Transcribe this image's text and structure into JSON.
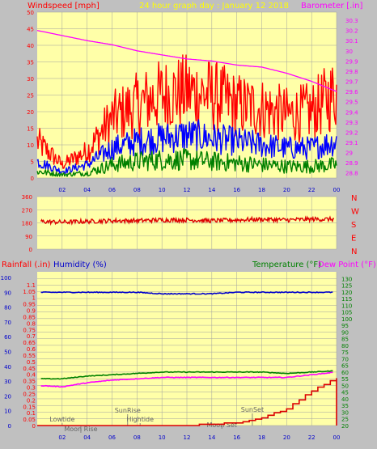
{
  "header": {
    "windspeed_label": "Windspeed [mph]",
    "title": "24 hour graph day : January 12 2018",
    "barometer_label": "Barometer [.in]"
  },
  "bottom_header": {
    "rainfall_label": "Rainfall (.in)",
    "humidity_label": "Humidity (%)",
    "temperature_label": "Temperature (°F)",
    "dewpoint_label": "Dew Point (°F)"
  },
  "colors": {
    "background": "#c0c0c0",
    "plot_bg": "#ffffa8",
    "grid": "#a0a0a0",
    "wind_gust": "#ff0000",
    "wind_max": "#0000ff",
    "wind_avg": "#008000",
    "barometer": "#ff00ff",
    "wind_dir": "#dd0000",
    "rain": "#dd0000",
    "humidity": "#0000cc",
    "temperature": "#008000",
    "dewpoint": "#ff00ff",
    "event_line": "#707070",
    "right_axis_text": "#ff00ff"
  },
  "x_ticks": [
    "02",
    "04",
    "06",
    "08",
    "10",
    "12",
    "14",
    "16",
    "18",
    "20",
    "22",
    "00"
  ],
  "chart_data": [
    {
      "type": "line",
      "title": "24 hour graph day : January 12 2018",
      "ylabel": "Windspeed [mph]",
      "ylabel_right": "Barometer [.in]",
      "ylim": [
        0,
        50
      ],
      "ylim_right": [
        28.75,
        30.38
      ],
      "yticks": [
        0,
        5,
        10,
        15,
        20,
        25,
        30,
        35,
        40,
        45,
        50
      ],
      "yticks_right": [
        "28.8",
        "28.9",
        "29",
        "29.1",
        "29.2",
        "29.3",
        "29.4",
        "29.5",
        "29.6",
        "29.7",
        "29.8",
        "29.9",
        "30",
        "30.1",
        "30.2",
        "30.3"
      ],
      "x": [
        "00",
        "02",
        "04",
        "06",
        "08",
        "10",
        "12",
        "14",
        "16",
        "18",
        "20",
        "22",
        "00"
      ],
      "series": [
        {
          "key": "gust",
          "values": [
            11,
            4,
            8,
            18,
            22,
            25,
            26,
            25,
            22,
            21,
            19,
            20,
            26
          ]
        },
        {
          "key": "max",
          "values": [
            5,
            2,
            4,
            9,
            11,
            12,
            13,
            12,
            11,
            10,
            9,
            9,
            11
          ]
        },
        {
          "key": "avg",
          "values": [
            2,
            1,
            1.5,
            4,
            5,
            5.5,
            5.5,
            5,
            4.5,
            4,
            3.5,
            3.5,
            4
          ]
        },
        {
          "key": "barometer",
          "values": [
            30.2,
            30.15,
            30.1,
            30.06,
            30.0,
            29.96,
            29.92,
            29.9,
            29.86,
            29.84,
            29.78,
            29.7,
            29.6
          ]
        }
      ]
    },
    {
      "type": "line",
      "yticks": [
        0,
        90,
        180,
        270,
        360
      ],
      "ylim": [
        0,
        360
      ],
      "right_labels": [
        "N",
        "W",
        "S",
        "E",
        "N"
      ],
      "x": [
        "00",
        "02",
        "04",
        "06",
        "08",
        "10",
        "12",
        "14",
        "16",
        "18",
        "20",
        "22",
        "00"
      ],
      "series": [
        {
          "key": "direction",
          "values": [
            190,
            185,
            190,
            195,
            195,
            200,
            200,
            195,
            200,
            205,
            200,
            205,
            205
          ]
        }
      ]
    },
    {
      "type": "line",
      "ylabel_left_outer": "Rainfall (.in)",
      "ylabel_left_inner": "Humidity (%)",
      "ylabel_right": "Temperature (°F)",
      "ylabel_right2": "Dew Point (°F)",
      "ylim_rain": [
        0,
        1.2
      ],
      "ylim_humidity": [
        0,
        100
      ],
      "ylim_temp": [
        20,
        135
      ],
      "rain_ticks": [
        "0",
        "0.05",
        "0.1",
        "0.15",
        "0.2",
        "0.25",
        "0.3",
        "0.35",
        "0.4",
        "0.45",
        "0.5",
        "0.55",
        "0.6",
        "0.65",
        "0.7",
        "0.75",
        "0.8",
        "0.85",
        "0.9",
        "0.95",
        "1",
        "1.05",
        "1.1"
      ],
      "humidity_ticks": [
        0,
        10,
        20,
        30,
        40,
        50,
        60,
        70,
        80,
        90,
        100
      ],
      "temp_ticks": [
        20,
        25,
        30,
        35,
        40,
        45,
        50,
        55,
        60,
        65,
        70,
        75,
        80,
        85,
        90,
        95,
        100,
        105,
        110,
        115,
        120,
        125,
        130
      ],
      "x": [
        "00",
        "02",
        "04",
        "06",
        "08",
        "10",
        "12",
        "14",
        "16",
        "18",
        "20",
        "22",
        "00"
      ],
      "series": [
        {
          "key": "humidity",
          "values": [
            90,
            90,
            90,
            90,
            90,
            89,
            89,
            89,
            90,
            90,
            90,
            90,
            90
          ]
        },
        {
          "key": "temperature",
          "values": [
            55,
            55,
            57,
            58,
            59,
            60,
            60,
            60,
            60,
            60,
            59,
            60,
            61
          ]
        },
        {
          "key": "dewpoint",
          "values": [
            50,
            49,
            52,
            54,
            55,
            56,
            56,
            56,
            56,
            56,
            56,
            58,
            60
          ]
        },
        {
          "key": "rain",
          "values": [
            0,
            0,
            0,
            0,
            0,
            0,
            0,
            0.01,
            0.02,
            0.06,
            0.13,
            0.27,
            0.37
          ]
        }
      ],
      "events": [
        {
          "label": "Lowtide",
          "hour": 2.0
        },
        {
          "label": "Moon Rise",
          "hour": 3.5
        },
        {
          "label": "SunRise",
          "hour": 7.25
        },
        {
          "label": "Hightide",
          "hour": 8.25
        },
        {
          "label": "Moon Set",
          "hour": 14.8
        },
        {
          "label": "SunSet",
          "hour": 17.25
        }
      ]
    }
  ]
}
